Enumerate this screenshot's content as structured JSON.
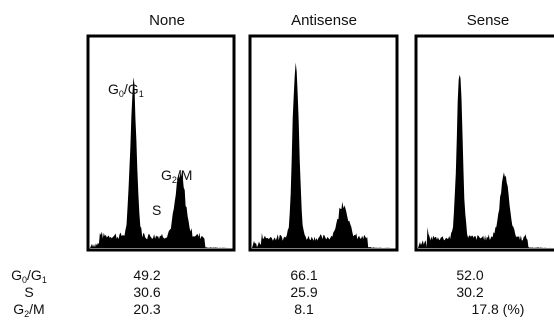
{
  "chart_data": {
    "type": "area",
    "description_note": "",
    "panels": [
      {
        "title": "None"
      },
      {
        "title": "Antisense"
      },
      {
        "title": "Sense"
      }
    ],
    "peak_labels": {
      "g0g1": {
        "main": "G",
        "sub1": "0",
        "sep": "/G",
        "sub2": "1"
      },
      "s": "S",
      "g2m": {
        "main": "G",
        "sub1": "2",
        "tail": "/M"
      }
    },
    "table": {
      "row_labels": [
        {
          "main": "G",
          "sub1": "0",
          "sep": "/G",
          "sub2": "1"
        },
        {
          "main": "S"
        },
        {
          "main": "G",
          "sub1": "2",
          "tail": "/M"
        }
      ],
      "columns": [
        {
          "values": [
            "49.2",
            "30.6",
            "20.3"
          ]
        },
        {
          "values": [
            "66.1",
            "25.9",
            "8.1"
          ]
        },
        {
          "values": [
            "52.0",
            "30.2",
            "17.8 (%)"
          ]
        }
      ]
    },
    "series": [
      {
        "g0g1_height": 0.74,
        "s_level": 0.06,
        "g2m_height": 0.3
      },
      {
        "g0g1_height": 0.88,
        "s_level": 0.05,
        "g2m_height": 0.17
      },
      {
        "g0g1_height": 0.78,
        "s_level": 0.05,
        "g2m_height": 0.3
      }
    ]
  }
}
